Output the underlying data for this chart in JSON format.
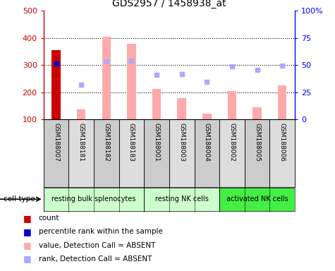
{
  "title": "GDS2957 / 1458938_at",
  "samples": [
    "GSM188007",
    "GSM188181",
    "GSM188182",
    "GSM188183",
    "GSM188001",
    "GSM188003",
    "GSM188004",
    "GSM188002",
    "GSM188005",
    "GSM188006"
  ],
  "cell_types": [
    {
      "label": "resting bulk splenocytes",
      "start": 0,
      "end": 4,
      "color": "#ccffcc"
    },
    {
      "label": "resting NK cells",
      "start": 4,
      "end": 7,
      "color": "#ccffcc"
    },
    {
      "label": "activated NK cells",
      "start": 7,
      "end": 10,
      "color": "#44ee44"
    }
  ],
  "count_values": [
    354,
    null,
    null,
    null,
    null,
    null,
    null,
    null,
    null,
    null
  ],
  "count_color": "#cc0000",
  "rank_values": [
    305,
    null,
    null,
    null,
    null,
    null,
    null,
    null,
    null,
    null
  ],
  "rank_color": "#0000cc",
  "absent_bar_values": [
    null,
    137,
    405,
    378,
    213,
    178,
    122,
    203,
    143,
    224
  ],
  "absent_bar_color": "#ffaaaa",
  "absent_rank_values": [
    null,
    228,
    313,
    315,
    265,
    266,
    237,
    295,
    282,
    297
  ],
  "absent_rank_color": "#aaaaff",
  "ylim": [
    100,
    500
  ],
  "y_ticks": [
    100,
    200,
    300,
    400,
    500
  ],
  "y_tick_labels": [
    "100",
    "200",
    "300",
    "400",
    "500"
  ],
  "right_ylim": [
    0,
    100
  ],
  "right_yticks": [
    0,
    25,
    50,
    75,
    100
  ],
  "right_yticklabels": [
    "0",
    "25",
    "50",
    "75",
    "100%"
  ],
  "dotted_lines": [
    200,
    300,
    400
  ],
  "cell_type_label": "cell type",
  "legend": [
    {
      "label": "count",
      "color": "#cc0000"
    },
    {
      "label": "percentile rank within the sample",
      "color": "#0000cc"
    },
    {
      "label": "value, Detection Call = ABSENT",
      "color": "#ffaaaa"
    },
    {
      "label": "rank, Detection Call = ABSENT",
      "color": "#aaaaff"
    }
  ],
  "bar_width": 0.35,
  "col_bg_even": "#cccccc",
  "col_bg_odd": "#dddddd"
}
